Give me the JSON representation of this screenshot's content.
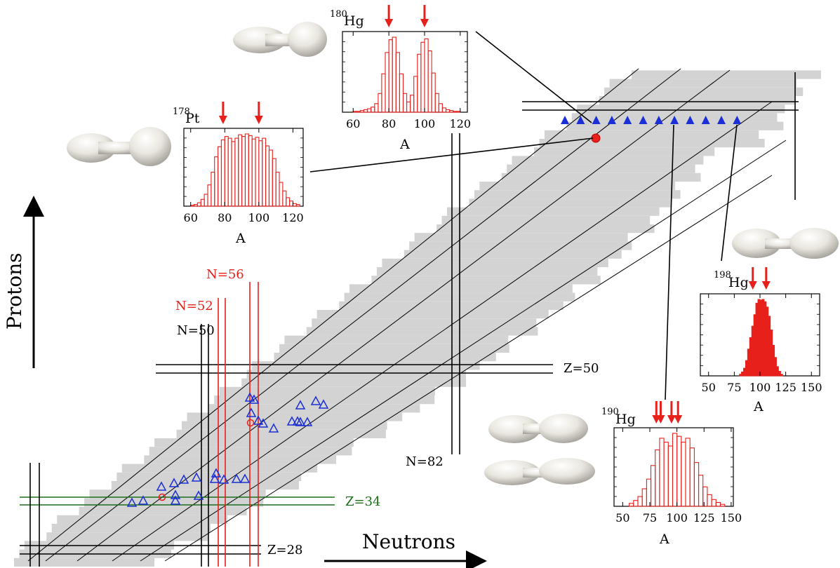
{
  "axes": {
    "x_label": "Neutrons",
    "y_label": "Protons"
  },
  "magic_lines": {
    "z50": "Z=50",
    "z34": "Z=34",
    "z28": "Z=28",
    "n50": "N=50",
    "n52": "N=52",
    "n56": "N=56",
    "n82": "N=82"
  },
  "colors": {
    "chart_gray": "#d3d3d3",
    "black_line": "#000000",
    "red_line": "#e8201c",
    "green_line": "#1a6e1a",
    "triangle": "#1a2fd6",
    "histogram": "#e8201c"
  },
  "insets": {
    "hg180": {
      "mass": "180",
      "element": "Hg",
      "xlabel": "A",
      "ticks": [
        "60",
        "80",
        "100",
        "120"
      ]
    },
    "pt178": {
      "mass": "178",
      "element": "Pt",
      "xlabel": "A",
      "ticks": [
        "60",
        "80",
        "100",
        "120"
      ]
    },
    "hg198": {
      "mass": "198",
      "element": "Hg",
      "xlabel": "A",
      "ticks": [
        "50",
        "75",
        "100",
        "125",
        "150"
      ]
    },
    "hg190": {
      "mass": "190",
      "element": "Hg",
      "xlabel": "A",
      "ticks": [
        "50",
        "75",
        "100",
        "125",
        "150"
      ]
    }
  },
  "chart_data": {
    "type": "histogram",
    "histograms": [
      {
        "nucleus": "180Hg",
        "A": [
          60,
          62,
          64,
          66,
          68,
          70,
          72,
          74,
          76,
          78,
          80,
          82,
          84,
          86,
          88,
          90,
          92,
          94,
          96,
          98,
          100,
          102,
          104,
          106,
          108,
          110,
          112,
          114,
          116,
          118
        ],
        "counts": [
          1,
          1,
          2,
          3,
          4,
          6,
          10,
          22,
          45,
          70,
          85,
          88,
          70,
          45,
          22,
          12,
          20,
          42,
          68,
          82,
          86,
          72,
          46,
          22,
          10,
          5,
          3,
          2,
          1,
          1
        ]
      },
      {
        "nucleus": "178Pt",
        "A": [
          60,
          62,
          64,
          66,
          68,
          70,
          72,
          74,
          76,
          78,
          80,
          82,
          84,
          86,
          88,
          90,
          92,
          94,
          96,
          98,
          100,
          102,
          104,
          106,
          108,
          110,
          112,
          114,
          116,
          118,
          120,
          122
        ],
        "counts": [
          1,
          2,
          4,
          8,
          14,
          25,
          40,
          58,
          70,
          78,
          82,
          80,
          76,
          80,
          84,
          82,
          85,
          83,
          79,
          81,
          77,
          80,
          71,
          66,
          56,
          40,
          28,
          18,
          10,
          6,
          3,
          2
        ]
      },
      {
        "nucleus": "198Hg",
        "A": [
          80,
          82,
          84,
          86,
          88,
          90,
          92,
          94,
          96,
          98,
          100,
          102,
          104,
          106,
          108,
          110,
          112,
          114,
          116,
          118,
          120
        ],
        "counts": [
          2,
          5,
          10,
          20,
          35,
          50,
          65,
          80,
          95,
          100,
          99,
          100,
          97,
          90,
          78,
          60,
          40,
          24,
          12,
          6,
          2
        ]
      },
      {
        "nucleus": "190Hg",
        "A": [
          56,
          60,
          64,
          68,
          72,
          76,
          80,
          84,
          88,
          92,
          96,
          100,
          104,
          108,
          112,
          116,
          120,
          124,
          128,
          132,
          136,
          140
        ],
        "counts": [
          3,
          6,
          10,
          18,
          28,
          42,
          58,
          70,
          66,
          62,
          75,
          72,
          66,
          70,
          60,
          45,
          32,
          20,
          12,
          7,
          4,
          2
        ]
      }
    ],
    "arrows": {
      "180Hg": [
        80,
        100
      ],
      "178Pt": [
        79,
        100
      ],
      "198Hg": [
        93,
        106
      ],
      "190Hg": [
        81,
        85,
        95,
        101
      ]
    }
  }
}
